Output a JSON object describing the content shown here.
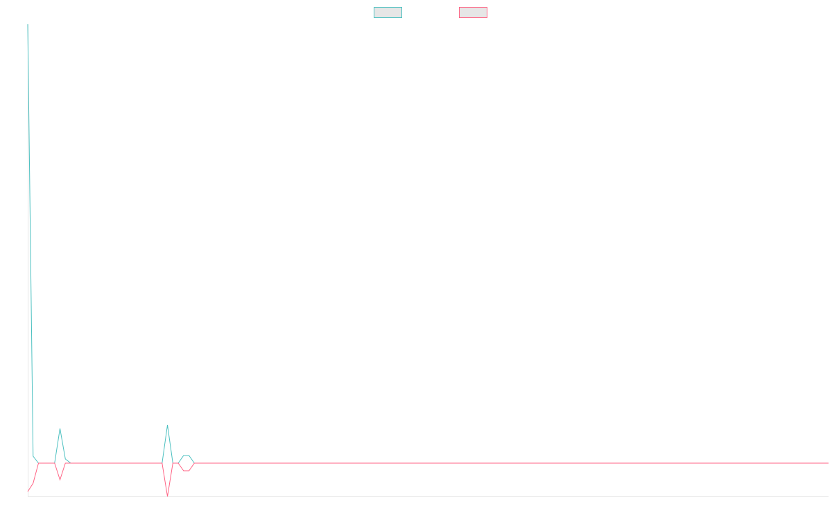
{
  "chart_data": {
    "type": "line",
    "ylim": [
      -48,
      633
    ],
    "legend": "top",
    "series": [
      {
        "color": "#4bc0c0",
        "values": [
          633,
          10,
          0,
          0,
          0,
          0,
          50,
          6,
          0,
          0,
          0,
          0,
          0,
          0,
          0,
          0,
          0,
          0,
          0,
          0,
          0,
          0,
          0,
          0,
          0,
          0,
          55,
          0,
          0,
          11,
          11,
          0,
          0,
          0,
          0,
          0,
          0,
          0,
          0,
          0,
          0,
          0,
          0,
          0,
          0,
          0,
          0,
          0,
          0,
          0,
          0,
          0,
          0,
          0,
          0,
          0,
          0,
          0,
          0,
          0,
          0,
          0,
          0,
          0,
          0,
          0,
          0,
          0,
          0,
          0,
          0,
          0,
          0,
          0,
          0,
          0,
          0,
          0,
          0,
          0,
          0,
          0,
          0,
          0,
          0,
          0,
          0,
          0,
          0,
          0,
          0,
          0,
          0,
          0,
          0,
          0,
          0,
          0,
          0,
          0,
          0,
          0,
          0,
          0,
          0,
          0,
          0,
          0,
          0,
          0,
          0,
          0,
          0,
          0,
          0,
          0,
          0,
          0,
          0,
          0,
          0,
          0,
          0,
          0,
          0,
          0,
          0,
          0,
          0,
          0,
          0,
          0,
          0,
          0,
          0,
          0,
          0,
          0,
          0,
          0,
          0,
          0,
          0,
          0,
          0,
          0,
          0,
          0,
          0,
          0
        ]
      },
      {
        "color": "#ff6384",
        "values": [
          -41,
          -29,
          0,
          0,
          0,
          0,
          -24,
          0,
          0,
          0,
          0,
          0,
          0,
          0,
          0,
          0,
          0,
          0,
          0,
          0,
          0,
          0,
          0,
          0,
          0,
          0,
          -48,
          0,
          0,
          -11,
          -11,
          0,
          0,
          0,
          0,
          0,
          0,
          0,
          0,
          0,
          0,
          0,
          0,
          0,
          0,
          0,
          0,
          0,
          0,
          0,
          0,
          0,
          0,
          0,
          0,
          0,
          0,
          0,
          0,
          0,
          0,
          0,
          0,
          0,
          0,
          0,
          0,
          0,
          0,
          0,
          0,
          0,
          0,
          0,
          0,
          0,
          0,
          0,
          0,
          0,
          0,
          0,
          0,
          0,
          0,
          0,
          0,
          0,
          0,
          0,
          0,
          0,
          0,
          0,
          0,
          0,
          0,
          0,
          0,
          0,
          0,
          0,
          0,
          0,
          0,
          0,
          0,
          0,
          0,
          0,
          0,
          0,
          0,
          0,
          0,
          0,
          0,
          0,
          0,
          0,
          0,
          0,
          0,
          0,
          0,
          0,
          0,
          0,
          0,
          0,
          0,
          0,
          0,
          0,
          0,
          0,
          0,
          0,
          0,
          0,
          0,
          0,
          0,
          0,
          0,
          0,
          0,
          0,
          0,
          0
        ]
      }
    ]
  }
}
